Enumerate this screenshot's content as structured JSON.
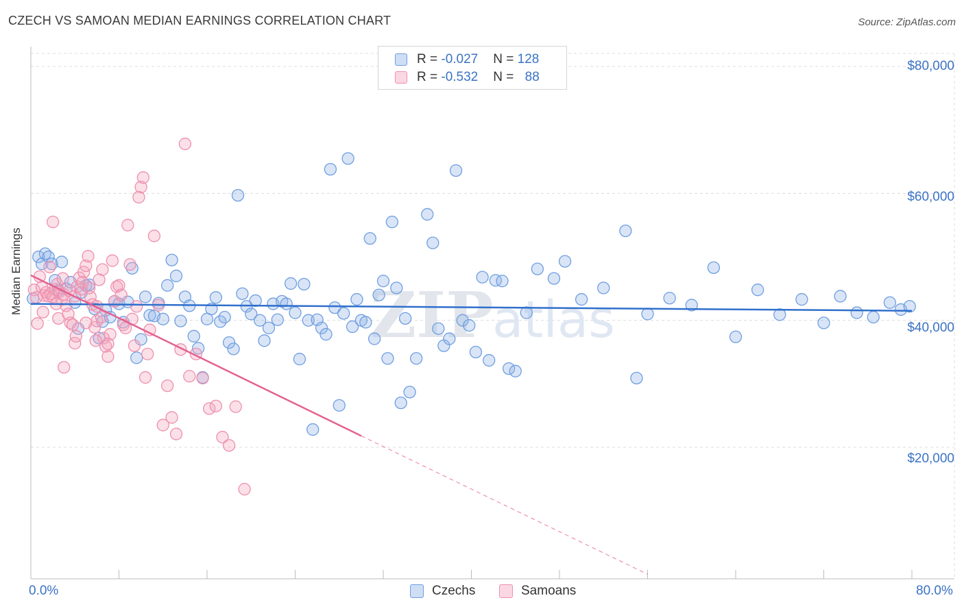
{
  "header": {
    "title": "CZECH VS SAMOAN MEDIAN EARNINGS CORRELATION CHART",
    "source": "Source: ZipAtlas.com"
  },
  "watermark": {
    "zip": "ZIP",
    "atlas": "atlas"
  },
  "legend": {
    "rows": [
      {
        "r_label": "R = ",
        "r_value": "-0.027",
        "n_label": "N = ",
        "n_value": "128"
      },
      {
        "r_label": "R = ",
        "r_value": "-0.532",
        "n_label": "N = ",
        "n_value": "88"
      }
    ]
  },
  "bottom_legend": {
    "czechs": "Czechs",
    "samoans": "Samoans"
  },
  "axes": {
    "ylabel": "Median Earnings",
    "x_min_label": "0.0%",
    "x_max_label": "80.0%",
    "y_ticks": [
      "$80,000",
      "$60,000",
      "$40,000",
      "$20,000"
    ]
  },
  "colors": {
    "czech_fill": "rgba(147,181,232,0.35)",
    "czech_stroke": "#6f9ee0",
    "czech_line": "#2f6fcc",
    "samoan_fill": "rgba(244,166,190,0.35)",
    "samoan_stroke": "#ee8fae",
    "samoan_line": "#e4608f",
    "axis_text": "#3a72c4"
  },
  "chart_data": {
    "type": "scatter",
    "title": "CZECH VS SAMOAN MEDIAN EARNINGS CORRELATION CHART",
    "xlabel": "",
    "ylabel": "Median Earnings",
    "xlim": [
      0,
      80
    ],
    "ylim": [
      0,
      80000
    ],
    "x_ticks": [
      0,
      8,
      16,
      24,
      32,
      40,
      48,
      56,
      64,
      72,
      80
    ],
    "y_ticks": [
      20000,
      40000,
      60000,
      80000
    ],
    "grid": true,
    "series": [
      {
        "name": "Czechs",
        "R": -0.027,
        "N": 128,
        "trend": {
          "x": [
            0,
            80
          ],
          "y": [
            42600,
            41500
          ],
          "dashed_beyond": null
        },
        "points": [
          [
            0.2,
            43400
          ],
          [
            0.7,
            50000
          ],
          [
            1.0,
            48900
          ],
          [
            1.3,
            50500
          ],
          [
            1.6,
            50000
          ],
          [
            1.9,
            48900
          ],
          [
            2.2,
            46300
          ],
          [
            2.5,
            44700
          ],
          [
            2.8,
            49200
          ],
          [
            3.2,
            45000
          ],
          [
            3.6,
            46000
          ],
          [
            4.0,
            42800
          ],
          [
            4.3,
            38700
          ],
          [
            4.6,
            44400
          ],
          [
            5.0,
            45500
          ],
          [
            5.3,
            45600
          ],
          [
            5.8,
            41800
          ],
          [
            6.2,
            37200
          ],
          [
            6.5,
            39800
          ],
          [
            6.8,
            41600
          ],
          [
            7.2,
            40500
          ],
          [
            7.6,
            43000
          ],
          [
            8.0,
            42600
          ],
          [
            8.4,
            39700
          ],
          [
            8.8,
            42900
          ],
          [
            9.2,
            48200
          ],
          [
            9.6,
            34100
          ],
          [
            10.0,
            37000
          ],
          [
            10.4,
            43700
          ],
          [
            10.8,
            40800
          ],
          [
            11.2,
            40700
          ],
          [
            11.6,
            42700
          ],
          [
            12.0,
            40200
          ],
          [
            12.4,
            45500
          ],
          [
            12.8,
            49500
          ],
          [
            13.2,
            47000
          ],
          [
            13.6,
            39900
          ],
          [
            14.0,
            43700
          ],
          [
            14.4,
            42300
          ],
          [
            14.8,
            37500
          ],
          [
            15.2,
            35600
          ],
          [
            15.6,
            31000
          ],
          [
            16.0,
            40200
          ],
          [
            16.4,
            41800
          ],
          [
            16.8,
            43600
          ],
          [
            17.2,
            39800
          ],
          [
            17.6,
            40500
          ],
          [
            18.0,
            36500
          ],
          [
            18.4,
            35500
          ],
          [
            18.8,
            59700
          ],
          [
            19.2,
            44200
          ],
          [
            19.6,
            42200
          ],
          [
            20.0,
            41000
          ],
          [
            20.4,
            43100
          ],
          [
            20.8,
            40000
          ],
          [
            21.2,
            36800
          ],
          [
            21.6,
            38800
          ],
          [
            22.0,
            42600
          ],
          [
            22.4,
            40100
          ],
          [
            22.8,
            43000
          ],
          [
            23.2,
            42600
          ],
          [
            23.6,
            45800
          ],
          [
            24.0,
            41200
          ],
          [
            24.4,
            33900
          ],
          [
            24.8,
            45700
          ],
          [
            25.2,
            40000
          ],
          [
            25.6,
            22800
          ],
          [
            26.0,
            40100
          ],
          [
            26.4,
            38800
          ],
          [
            26.8,
            37800
          ],
          [
            27.2,
            63800
          ],
          [
            27.6,
            42000
          ],
          [
            28.0,
            26600
          ],
          [
            28.4,
            41100
          ],
          [
            28.8,
            65500
          ],
          [
            29.2,
            39000
          ],
          [
            29.6,
            43300
          ],
          [
            30.0,
            40000
          ],
          [
            30.4,
            39700
          ],
          [
            30.8,
            52900
          ],
          [
            31.2,
            37100
          ],
          [
            31.6,
            44000
          ],
          [
            32.0,
            46200
          ],
          [
            32.4,
            34000
          ],
          [
            32.8,
            55500
          ],
          [
            33.2,
            45100
          ],
          [
            33.6,
            27000
          ],
          [
            34.0,
            40300
          ],
          [
            34.4,
            28700
          ],
          [
            35.0,
            34000
          ],
          [
            36.0,
            56700
          ],
          [
            36.5,
            52200
          ],
          [
            37.0,
            38700
          ],
          [
            37.5,
            36000
          ],
          [
            38.0,
            37100
          ],
          [
            38.6,
            63600
          ],
          [
            39.2,
            40000
          ],
          [
            39.8,
            39200
          ],
          [
            40.4,
            35000
          ],
          [
            41.0,
            46800
          ],
          [
            41.6,
            33700
          ],
          [
            42.2,
            46300
          ],
          [
            42.8,
            46200
          ],
          [
            43.4,
            32400
          ],
          [
            44.0,
            32000
          ],
          [
            45.0,
            41200
          ],
          [
            46.0,
            48100
          ],
          [
            47.5,
            46600
          ],
          [
            48.5,
            49300
          ],
          [
            50.0,
            43300
          ],
          [
            52.0,
            45100
          ],
          [
            54.0,
            54100
          ],
          [
            55.0,
            30900
          ],
          [
            56.0,
            41000
          ],
          [
            58.0,
            43500
          ],
          [
            60.0,
            42400
          ],
          [
            62.0,
            48300
          ],
          [
            64.0,
            37400
          ],
          [
            66.0,
            44800
          ],
          [
            68.0,
            40900
          ],
          [
            70.0,
            43300
          ],
          [
            72.0,
            39600
          ],
          [
            73.5,
            43800
          ],
          [
            75.0,
            41200
          ],
          [
            76.5,
            40500
          ],
          [
            78.0,
            42800
          ],
          [
            79.0,
            41700
          ],
          [
            79.8,
            42200
          ]
        ]
      },
      {
        "name": "Samoans",
        "R": -0.532,
        "N": 88,
        "trend": {
          "x": [
            0,
            30
          ],
          "y": [
            47100,
            21800
          ],
          "dashed_to": [
            56,
            0
          ]
        },
        "points": [
          [
            0.3,
            44800
          ],
          [
            0.5,
            43600
          ],
          [
            0.8,
            46900
          ],
          [
            1.0,
            45200
          ],
          [
            1.2,
            43900
          ],
          [
            1.4,
            44400
          ],
          [
            1.6,
            43800
          ],
          [
            1.8,
            44200
          ],
          [
            2.0,
            43700
          ],
          [
            2.2,
            44900
          ],
          [
            2.4,
            45700
          ],
          [
            2.6,
            44500
          ],
          [
            2.8,
            43300
          ],
          [
            3.0,
            44100
          ],
          [
            3.2,
            42300
          ],
          [
            3.4,
            41000
          ],
          [
            3.6,
            39600
          ],
          [
            3.8,
            39300
          ],
          [
            4.0,
            43800
          ],
          [
            4.2,
            45300
          ],
          [
            4.4,
            46700
          ],
          [
            4.6,
            44900
          ],
          [
            4.8,
            47600
          ],
          [
            5.0,
            48600
          ],
          [
            5.2,
            50100
          ],
          [
            5.4,
            43700
          ],
          [
            5.6,
            42500
          ],
          [
            5.8,
            38900
          ],
          [
            6.0,
            39900
          ],
          [
            6.2,
            46400
          ],
          [
            6.4,
            40500
          ],
          [
            6.6,
            37200
          ],
          [
            6.8,
            35900
          ],
          [
            7.0,
            34300
          ],
          [
            7.2,
            37800
          ],
          [
            7.4,
            49400
          ],
          [
            7.6,
            43000
          ],
          [
            7.8,
            45300
          ],
          [
            8.0,
            45500
          ],
          [
            8.2,
            44000
          ],
          [
            8.4,
            39300
          ],
          [
            8.6,
            38800
          ],
          [
            8.8,
            55000
          ],
          [
            9.0,
            48800
          ],
          [
            9.2,
            40200
          ],
          [
            9.4,
            36000
          ],
          [
            9.6,
            42200
          ],
          [
            9.8,
            59400
          ],
          [
            10.0,
            61000
          ],
          [
            10.2,
            62500
          ],
          [
            10.4,
            31000
          ],
          [
            10.6,
            34700
          ],
          [
            10.8,
            38500
          ],
          [
            11.2,
            53300
          ],
          [
            11.6,
            42400
          ],
          [
            12.0,
            23500
          ],
          [
            12.4,
            29700
          ],
          [
            12.8,
            24700
          ],
          [
            13.2,
            22100
          ],
          [
            13.6,
            35400
          ],
          [
            14.0,
            67800
          ],
          [
            14.4,
            31200
          ],
          [
            15.0,
            34700
          ],
          [
            15.6,
            30900
          ],
          [
            16.2,
            26100
          ],
          [
            16.8,
            26500
          ],
          [
            17.4,
            21600
          ],
          [
            18.0,
            20300
          ],
          [
            18.6,
            26400
          ],
          [
            19.4,
            13400
          ],
          [
            2.0,
            55500
          ],
          [
            2.5,
            40300
          ],
          [
            3.0,
            32600
          ],
          [
            4.0,
            36400
          ],
          [
            5.0,
            39600
          ],
          [
            6.0,
            42200
          ],
          [
            6.5,
            48000
          ],
          [
            7.0,
            36300
          ],
          [
            0.6,
            39500
          ],
          [
            1.1,
            41300
          ],
          [
            1.7,
            48400
          ],
          [
            2.3,
            42600
          ],
          [
            2.9,
            46600
          ],
          [
            3.5,
            44700
          ],
          [
            4.1,
            37500
          ],
          [
            4.7,
            46000
          ],
          [
            5.3,
            45100
          ],
          [
            5.9,
            36800
          ]
        ]
      }
    ]
  }
}
